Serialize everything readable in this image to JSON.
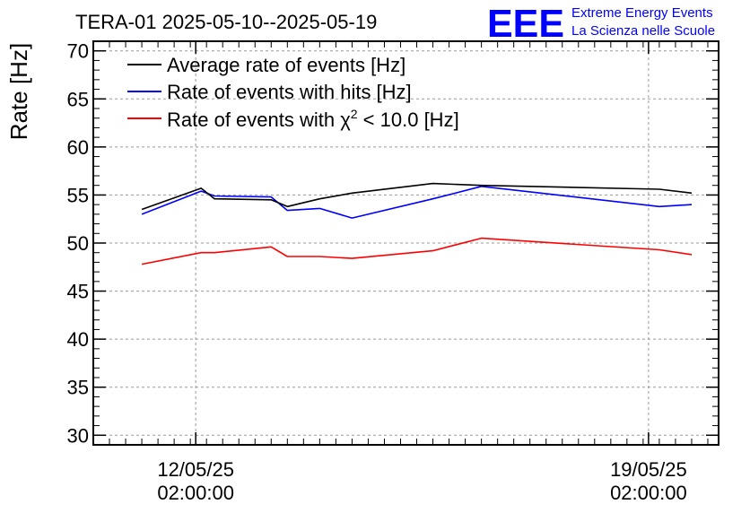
{
  "header": {
    "title": "TERA-01 2025-05-10--2025-05-19",
    "logo_mark": "EEE",
    "logo_line1": "Extreme Energy Events",
    "logo_line2": "La Scienza nelle Scuole",
    "logo_color": "#0000ff"
  },
  "chart_data": {
    "type": "line",
    "title": "TERA-01 2025-05-10--2025-05-19",
    "ylabel": "Rate [Hz]",
    "xlabel": "",
    "ylim": [
      29,
      71
    ],
    "yticks": [
      30,
      35,
      40,
      45,
      50,
      55,
      60,
      65,
      70
    ],
    "xlim": [
      "2025-05-10 12:00",
      "2025-05-20 04:00"
    ],
    "xticks": [
      {
        "x": "2025-05-12 02:00",
        "line1": "12/05/25",
        "line2": "02:00:00"
      },
      {
        "x": "2025-05-19 02:00",
        "line1": "19/05/25",
        "line2": "02:00:00"
      }
    ],
    "grid": true,
    "legend_position": "top-left",
    "series": [
      {
        "name": "Average rate of events [Hz]",
        "color": "#000000",
        "label_prefix": "Average rate of events [Hz]",
        "points": [
          [
            "2025-05-11 06:00",
            53.5
          ],
          [
            "2025-05-12 04:00",
            55.7
          ],
          [
            "2025-05-12 09:00",
            54.6
          ],
          [
            "2025-05-13 06:00",
            54.5
          ],
          [
            "2025-05-13 12:00",
            53.8
          ],
          [
            "2025-05-14 00:00",
            54.6
          ],
          [
            "2025-05-14 12:00",
            55.2
          ],
          [
            "2025-05-15 18:00",
            56.2
          ],
          [
            "2025-05-16 12:00",
            56.0
          ],
          [
            "2025-05-19 06:00",
            55.6
          ],
          [
            "2025-05-19 18:00",
            55.2
          ]
        ]
      },
      {
        "name": "Rate of events with hits [Hz]",
        "color": "#0000ff",
        "label_prefix": "Rate of events with hits [Hz]",
        "points": [
          [
            "2025-05-11 06:00",
            53.0
          ],
          [
            "2025-05-12 04:00",
            55.4
          ],
          [
            "2025-05-12 09:00",
            54.9
          ],
          [
            "2025-05-13 06:00",
            54.8
          ],
          [
            "2025-05-13 12:00",
            53.4
          ],
          [
            "2025-05-14 00:00",
            53.6
          ],
          [
            "2025-05-14 12:00",
            52.6
          ],
          [
            "2025-05-15 18:00",
            54.6
          ],
          [
            "2025-05-16 12:00",
            55.9
          ],
          [
            "2025-05-19 06:00",
            53.8
          ],
          [
            "2025-05-19 18:00",
            54.0
          ]
        ]
      },
      {
        "name": "Rate of events with χ² < 10.0 [Hz]",
        "color": "#ff0000",
        "label_prefix": "Rate of events with χ",
        "label_sup": "2",
        "label_suffix": " < 10.0 [Hz]",
        "points": [
          [
            "2025-05-11 06:00",
            47.8
          ],
          [
            "2025-05-12 04:00",
            49.0
          ],
          [
            "2025-05-12 09:00",
            49.0
          ],
          [
            "2025-05-13 06:00",
            49.6
          ],
          [
            "2025-05-13 12:00",
            48.6
          ],
          [
            "2025-05-14 00:00",
            48.6
          ],
          [
            "2025-05-14 12:00",
            48.4
          ],
          [
            "2025-05-15 18:00",
            49.2
          ],
          [
            "2025-05-16 12:00",
            50.5
          ],
          [
            "2025-05-19 06:00",
            49.3
          ],
          [
            "2025-05-19 18:00",
            48.8
          ]
        ]
      }
    ]
  }
}
